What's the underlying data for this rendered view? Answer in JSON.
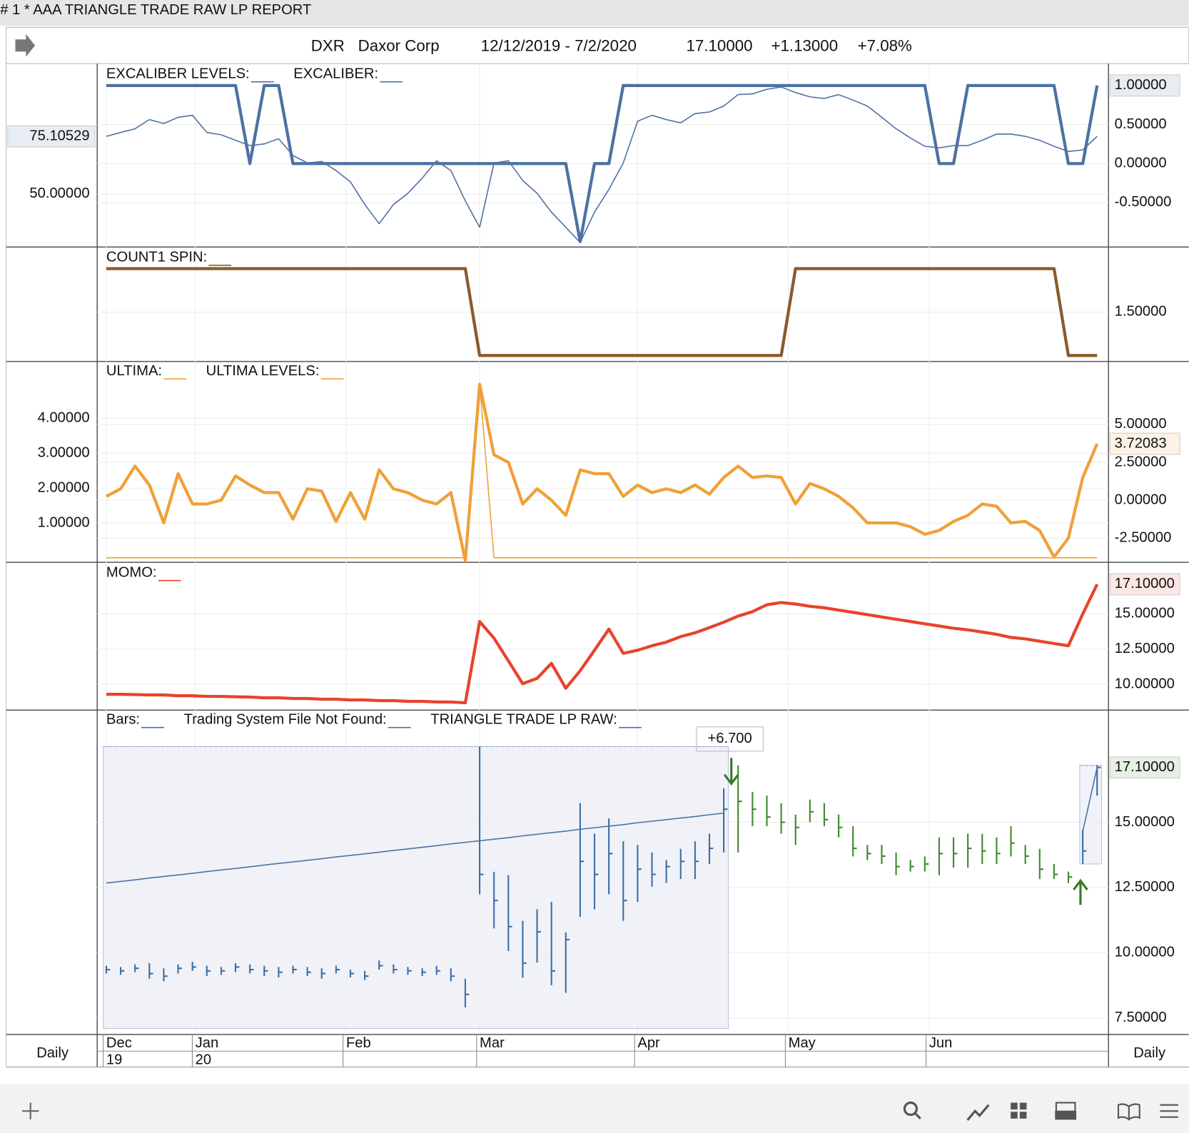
{
  "window": {
    "title": "# 1 * AAA  TRIANGLE TRADE RAW LP REPORT",
    "symbol": "DXR",
    "company": "Daxor Corp",
    "range": "12/12/2019 - 7/2/2020",
    "last": "17.10000",
    "change": "+1.13000",
    "percent": "+7.08%",
    "period_left": "Daily",
    "period_right": "Daily"
  },
  "x_axis": {
    "xticks": [
      {
        "value": 0,
        "label": "Dec",
        "sub": "19"
      },
      {
        "value": 6.2,
        "label": "Jan",
        "sub": "20"
      },
      {
        "value": 16.7,
        "label": "Feb"
      },
      {
        "value": 26,
        "label": "Mar"
      },
      {
        "value": 37,
        "label": "Apr"
      },
      {
        "value": 47.5,
        "label": "May"
      },
      {
        "value": 57.3,
        "label": "Jun"
      }
    ]
  },
  "chart_data": [
    {
      "type": "line",
      "ylim": [
        -1.07,
        1.26
      ],
      "yticks": [
        {
          "value": 0.5,
          "label": "0.50000"
        },
        {
          "value": 0,
          "label": "0.00000"
        },
        {
          "value": -0.5,
          "label": "-0.50000"
        }
      ],
      "y2lim": [
        26.9,
        106.1
      ],
      "y2ticks": [
        {
          "value": 50,
          "label": "50.00000"
        }
      ],
      "series": [
        {
          "name": "EXCALIBER LEVELS:",
          "color": "#4d71a3",
          "style": "thick",
          "last_label": "1.00000",
          "values": [
            1,
            1,
            1,
            1,
            1,
            1,
            1,
            1,
            1,
            1,
            0,
            1,
            1,
            0,
            0,
            0,
            0,
            0,
            0,
            0,
            0,
            0,
            0,
            0,
            0,
            0,
            0,
            0,
            0,
            0,
            0,
            0,
            0,
            -1,
            0,
            0,
            1,
            1,
            1,
            1,
            1,
            1,
            1,
            1,
            1,
            1,
            1,
            1,
            1,
            1,
            1,
            1,
            1,
            1,
            1,
            1,
            1,
            1,
            0,
            0,
            1,
            1,
            1,
            1,
            1,
            1,
            1,
            0,
            0,
            1
          ]
        },
        {
          "name": "EXCALIBER:",
          "color": "#4d71a3",
          "style": "thin",
          "axis": "y2",
          "last_label": "75.10529",
          "values": [
            75.1,
            76.8,
            78.4,
            82.4,
            80.7,
            83.4,
            84.3,
            76.8,
            75.8,
            73.4,
            71.1,
            71.8,
            74.1,
            66.8,
            63.5,
            64.2,
            60.2,
            55.3,
            45.4,
            37.1,
            45.4,
            50.3,
            56.9,
            64.5,
            60.2,
            47.0,
            35.5,
            63.5,
            64.5,
            55.9,
            50.3,
            42.1,
            35.5,
            28.9,
            42.1,
            52.0,
            63.5,
            81.7,
            84.3,
            82.4,
            81.0,
            85.0,
            85.7,
            88.3,
            93.3,
            93.6,
            95.6,
            96.6,
            94.2,
            92.3,
            91.6,
            93.3,
            90.9,
            88.3,
            83.4,
            78.4,
            74.4,
            70.8,
            70.1,
            71.1,
            71.1,
            73.4,
            76.1,
            76.1,
            75.1,
            73.4,
            70.8,
            68.5,
            69.2,
            75.10529
          ]
        }
      ]
    },
    {
      "type": "line",
      "ylim": [
        0.94,
        2.23
      ],
      "yticks": [
        {
          "value": 1.5,
          "label": "1.50000"
        }
      ],
      "series": [
        {
          "name": "COUNT1 SPIN:",
          "color": "#8b5a2b",
          "style": "thick",
          "values": [
            2,
            2,
            2,
            2,
            2,
            2,
            2,
            2,
            2,
            2,
            2,
            2,
            2,
            2,
            2,
            2,
            2,
            2,
            2,
            2,
            2,
            2,
            2,
            2,
            2,
            2,
            1,
            1,
            1,
            1,
            1,
            1,
            1,
            1,
            1,
            1,
            1,
            1,
            1,
            1,
            1,
            1,
            1,
            1,
            1,
            1,
            1,
            1,
            2,
            2,
            2,
            2,
            2,
            2,
            2,
            2,
            2,
            2,
            2,
            2,
            2,
            2,
            2,
            2,
            2,
            2,
            2,
            1,
            1,
            1
          ]
        }
      ]
    },
    {
      "type": "line",
      "ylim": [
        -4.1,
        9.1
      ],
      "yticks": [
        {
          "value": 5,
          "label": "5.00000"
        },
        {
          "value": 2.5,
          "label": "2.50000"
        },
        {
          "value": 0,
          "label": "0.00000"
        },
        {
          "value": -2.5,
          "label": "-2.50000"
        }
      ],
      "y2lim": [
        -0.13,
        5.61
      ],
      "y2ticks": [
        {
          "value": 4,
          "label": "4.00000"
        },
        {
          "value": 3,
          "label": "3.00000"
        },
        {
          "value": 2,
          "label": "2.00000"
        },
        {
          "value": 1,
          "label": "1.00000"
        }
      ],
      "series": [
        {
          "name": "ULTIMA:",
          "color": "#f0a038",
          "style": "thick",
          "last_label": "3.72083",
          "values": [
            0.25,
            0.75,
            2.25,
            1.0,
            -1.5,
            1.75,
            -0.25,
            -0.25,
            0,
            1.6,
            1.0,
            0.5,
            0.5,
            -1.25,
            0.75,
            0.6,
            -1.4,
            0.5,
            -1.25,
            2.0,
            0.75,
            0.5,
            0,
            -0.25,
            0.5,
            -4.0,
            7.65,
            3.0,
            2.5,
            -0.25,
            0.75,
            0,
            -1.0,
            2.0,
            1.75,
            1.75,
            0.25,
            1.0,
            0.5,
            0.75,
            0.5,
            1.0,
            0.4,
            1.5,
            2.25,
            1.5,
            1.6,
            1.5,
            -0.25,
            1.1,
            0.75,
            0.25,
            -0.5,
            -1.5,
            -1.5,
            -1.5,
            -1.75,
            -2.25,
            -2.0,
            -1.4,
            -1.0,
            -0.25,
            -0.4,
            -1.5,
            -1.4,
            -2.0,
            -3.75,
            -2.5,
            1.5,
            3.72083
          ]
        },
        {
          "name": "ULTIMA LEVELS:",
          "color": "#f0a038",
          "style": "thin",
          "axis": "y2",
          "values": [
            0,
            0,
            0,
            0,
            0,
            0,
            0,
            0,
            0,
            0,
            0,
            0,
            0,
            0,
            0,
            0,
            0,
            0,
            0,
            0,
            0,
            0,
            0,
            0,
            0,
            0,
            5,
            0,
            0,
            0,
            0,
            0,
            0,
            0,
            0,
            0,
            0,
            0,
            0,
            0,
            0,
            0,
            0,
            0,
            0,
            0,
            0,
            0,
            0,
            0,
            0,
            0,
            0,
            0,
            0,
            0,
            0,
            0,
            0,
            0,
            0,
            0,
            0,
            0,
            0,
            0,
            0,
            0,
            0,
            0
          ]
        }
      ]
    },
    {
      "type": "line",
      "ylim": [
        8.23,
        18.55
      ],
      "yticks": [
        {
          "value": 15,
          "label": "15.00000"
        },
        {
          "value": 12.5,
          "label": "12.50000"
        },
        {
          "value": 10,
          "label": "10.00000"
        }
      ],
      "series": [
        {
          "name": "MOMO:",
          "color": "#e8432b",
          "style": "thick",
          "last_label": "17.10000",
          "values": [
            9.3,
            9.3,
            9.28,
            9.25,
            9.25,
            9.2,
            9.2,
            9.15,
            9.15,
            9.12,
            9.1,
            9.05,
            9.05,
            9.0,
            9.0,
            8.95,
            8.95,
            8.9,
            8.9,
            8.85,
            8.85,
            8.8,
            8.8,
            8.75,
            8.75,
            8.7,
            14.46,
            13.28,
            11.67,
            10.05,
            10.43,
            11.5,
            9.73,
            10.97,
            12.42,
            13.92,
            12.2,
            12.42,
            12.74,
            13.0,
            13.39,
            13.66,
            14.03,
            14.41,
            14.84,
            15.16,
            15.65,
            15.81,
            15.7,
            15.54,
            15.43,
            15.27,
            15.11,
            14.95,
            14.78,
            14.62,
            14.46,
            14.3,
            14.14,
            13.98,
            13.87,
            13.71,
            13.55,
            13.33,
            13.23,
            13.06,
            12.9,
            12.74,
            15.0,
            17.1
          ]
        }
      ]
    },
    {
      "type": "ohlc",
      "ylim": [
        6.95,
        19.27
      ],
      "yticks": [
        {
          "value": 15,
          "label": "15.00000"
        },
        {
          "value": 12.5,
          "label": "12.50000"
        },
        {
          "value": 10,
          "label": "10.00000"
        },
        {
          "value": 7.5,
          "label": "7.50000"
        }
      ],
      "legend_extra": {
        "after": 0,
        "name": "Trading System File Not Found:",
        "color": "#4d71a3"
      },
      "trade_boxes": [
        {
          "start": 0,
          "end": 43,
          "label": "+6.700"
        },
        {
          "start": 68,
          "end": 69
        }
      ],
      "series": [
        {
          "name": "Bars:",
          "kind": "ohlc",
          "color": "#3d6fa8",
          "color_out": "#3e8a2e",
          "label_color": "#3e8a2e",
          "last_label": "17.10000",
          "high": [
            9.5,
            9.45,
            9.55,
            9.6,
            9.4,
            9.55,
            9.65,
            9.5,
            9.45,
            9.6,
            9.55,
            9.5,
            9.45,
            9.5,
            9.45,
            9.4,
            9.5,
            9.35,
            9.3,
            9.7,
            9.55,
            9.45,
            9.4,
            9.5,
            9.4,
            9.0,
            17.9,
            13.1,
            12.97,
            11.22,
            11.66,
            11.95,
            10.78,
            15.73,
            14.56,
            15.15,
            14.27,
            14.13,
            13.84,
            13.55,
            13.98,
            14.27,
            14.56,
            16.3,
            17.18,
            16.16,
            16.02,
            15.73,
            15.29,
            15.87,
            15.73,
            15.29,
            14.85,
            14.13,
            14.13,
            13.84,
            13.55,
            13.69,
            14.42,
            14.42,
            14.56,
            14.56,
            14.42,
            14.85,
            14.13,
            13.98,
            13.4,
            13.11,
            14.71,
            17.18
          ],
          "low": [
            9.2,
            9.15,
            9.25,
            9.0,
            8.9,
            9.2,
            9.3,
            9.1,
            9.15,
            9.25,
            9.2,
            9.1,
            9.05,
            9.2,
            9.1,
            9.0,
            9.2,
            9.05,
            8.95,
            9.35,
            9.2,
            9.15,
            9.1,
            9.15,
            8.9,
            7.9,
            12.24,
            10.93,
            10.06,
            9.04,
            9.62,
            8.75,
            8.46,
            11.37,
            11.66,
            12.24,
            11.22,
            11.95,
            12.53,
            12.67,
            12.82,
            12.82,
            13.4,
            13.84,
            13.84,
            14.85,
            14.85,
            14.56,
            14.13,
            15.0,
            14.85,
            14.42,
            13.69,
            13.55,
            13.4,
            12.97,
            13.11,
            13.11,
            12.97,
            13.26,
            13.26,
            13.4,
            13.4,
            13.69,
            13.4,
            12.82,
            12.82,
            12.67,
            13.4,
            16.02
          ],
          "close": [
            9.35,
            9.3,
            9.4,
            9.2,
            9.1,
            9.4,
            9.45,
            9.3,
            9.3,
            9.45,
            9.35,
            9.3,
            9.25,
            9.35,
            9.25,
            9.2,
            9.35,
            9.2,
            9.1,
            9.5,
            9.35,
            9.3,
            9.25,
            9.3,
            9.1,
            8.4,
            13.0,
            12.0,
            11.0,
            9.6,
            10.8,
            9.3,
            10.5,
            13.5,
            13.0,
            13.8,
            12.0,
            13.2,
            13.0,
            13.3,
            13.5,
            13.5,
            14.0,
            15.5,
            15.8,
            15.5,
            15.2,
            15.0,
            14.8,
            15.4,
            15.1,
            14.8,
            14.0,
            13.8,
            13.7,
            13.3,
            13.3,
            13.4,
            13.8,
            13.8,
            14.0,
            13.9,
            13.8,
            14.2,
            13.7,
            13.2,
            13.0,
            12.9,
            13.9,
            17.1
          ]
        },
        {
          "name": "TRIANGLE TRADE LP RAW:",
          "color": "#4d71a3",
          "style": "thin",
          "values": [
            12.67,
            12.73,
            12.79,
            12.86,
            12.92,
            12.98,
            13.04,
            13.11,
            13.17,
            13.23,
            13.29,
            13.36,
            13.42,
            13.48,
            13.54,
            13.6,
            13.67,
            13.73,
            13.79,
            13.85,
            13.92,
            13.98,
            14.04,
            14.1,
            14.17,
            14.23,
            14.29,
            14.35,
            14.41,
            14.48,
            14.54,
            14.6,
            14.66,
            14.73,
            14.79,
            14.85,
            14.91,
            14.98,
            15.04,
            15.1,
            15.16,
            15.22,
            15.29,
            15.35,
            null,
            null,
            null,
            null,
            null,
            null,
            null,
            null,
            null,
            null,
            null,
            null,
            null,
            null,
            null,
            null,
            null,
            null,
            null,
            null,
            null,
            null,
            null,
            null,
            14.65,
            17.1
          ]
        }
      ]
    }
  ]
}
